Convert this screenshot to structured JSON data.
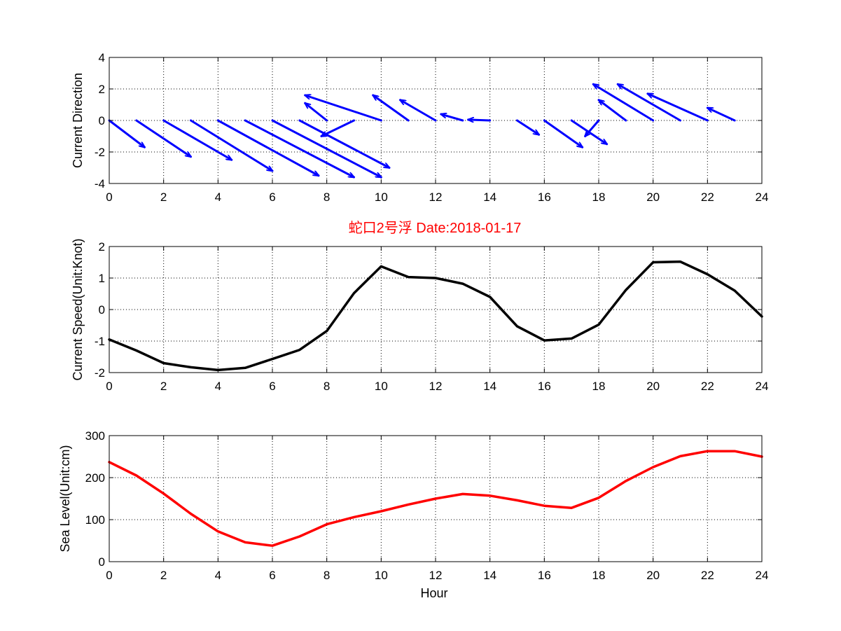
{
  "figure": {
    "title": "蛇口2号浮   Date:2018-01-17",
    "title_color": "#ff0000"
  },
  "chart_data": [
    {
      "type": "quiver",
      "ylabel": "Current Direction",
      "xlabel": "",
      "xlim": [
        0,
        24
      ],
      "ylim": [
        -4,
        4
      ],
      "xticks": [
        "0",
        "2",
        "4",
        "6",
        "8",
        "10",
        "12",
        "14",
        "16",
        "18",
        "20",
        "22",
        "24"
      ],
      "yticks": [
        "4",
        "2",
        "0",
        "-2",
        "-4"
      ],
      "grid": true,
      "color": "#0000ff",
      "x": [
        0,
        1,
        2,
        3,
        4,
        5,
        6,
        7,
        8,
        9,
        10,
        11,
        12,
        13,
        14,
        15,
        16,
        17,
        18,
        19,
        20,
        21,
        22,
        23
      ],
      "u": [
        1.3,
        2.0,
        2.5,
        3.0,
        3.7,
        4.0,
        4.0,
        3.3,
        -0.8,
        -1.2,
        -2.8,
        -1.3,
        -1.3,
        -0.8,
        -0.8,
        0.8,
        1.4,
        1.3,
        -0.5,
        -1.0,
        -2.2,
        -2.3,
        -2.2,
        -1.0
      ],
      "v": [
        -1.7,
        -2.3,
        -2.5,
        -3.2,
        -3.5,
        -3.6,
        -3.6,
        -3.0,
        1.1,
        -1.0,
        1.6,
        1.6,
        1.3,
        0.4,
        0.05,
        -0.9,
        -1.7,
        -1.5,
        -1.0,
        1.3,
        2.3,
        2.3,
        1.7,
        0.8
      ]
    },
    {
      "type": "line",
      "ylabel": "Current Speed(Unit:Knot)",
      "xlabel": "",
      "xlim": [
        0,
        24
      ],
      "ylim": [
        -2,
        2
      ],
      "xticks": [
        "0",
        "2",
        "4",
        "6",
        "8",
        "10",
        "12",
        "14",
        "16",
        "18",
        "20",
        "22",
        "24"
      ],
      "yticks": [
        "2",
        "1",
        "0",
        "-1",
        "-2"
      ],
      "grid": true,
      "color": "#000000",
      "x": [
        0,
        1,
        2,
        3,
        4,
        5,
        6,
        7,
        8,
        9,
        10,
        11,
        12,
        13,
        14,
        15,
        16,
        17,
        18,
        19,
        20,
        21,
        22,
        23,
        24
      ],
      "values": [
        -0.95,
        -1.3,
        -1.7,
        -1.83,
        -1.92,
        -1.85,
        -1.57,
        -1.28,
        -0.68,
        0.52,
        1.37,
        1.03,
        1.0,
        0.82,
        0.4,
        -0.53,
        -0.98,
        -0.92,
        -0.48,
        0.62,
        1.5,
        1.52,
        1.12,
        0.6,
        -0.22
      ]
    },
    {
      "type": "line",
      "ylabel": "Sea Level(Unit:cm)",
      "xlabel": "Hour",
      "xlim": [
        0,
        24
      ],
      "ylim": [
        0,
        300
      ],
      "xticks": [
        "0",
        "2",
        "4",
        "6",
        "8",
        "10",
        "12",
        "14",
        "16",
        "18",
        "20",
        "22",
        "24"
      ],
      "yticks": [
        "300",
        "200",
        "100",
        "0"
      ],
      "grid": true,
      "color": "#ff0000",
      "x": [
        0,
        1,
        2,
        3,
        4,
        5,
        6,
        7,
        8,
        9,
        10,
        11,
        12,
        13,
        14,
        15,
        16,
        17,
        18,
        19,
        20,
        21,
        22,
        23,
        24
      ],
      "values": [
        237,
        205,
        162,
        114,
        72,
        46,
        38,
        60,
        89,
        106,
        120,
        136,
        150,
        161,
        157,
        146,
        133,
        128,
        152,
        192,
        225,
        251,
        263,
        263,
        250
      ]
    }
  ]
}
